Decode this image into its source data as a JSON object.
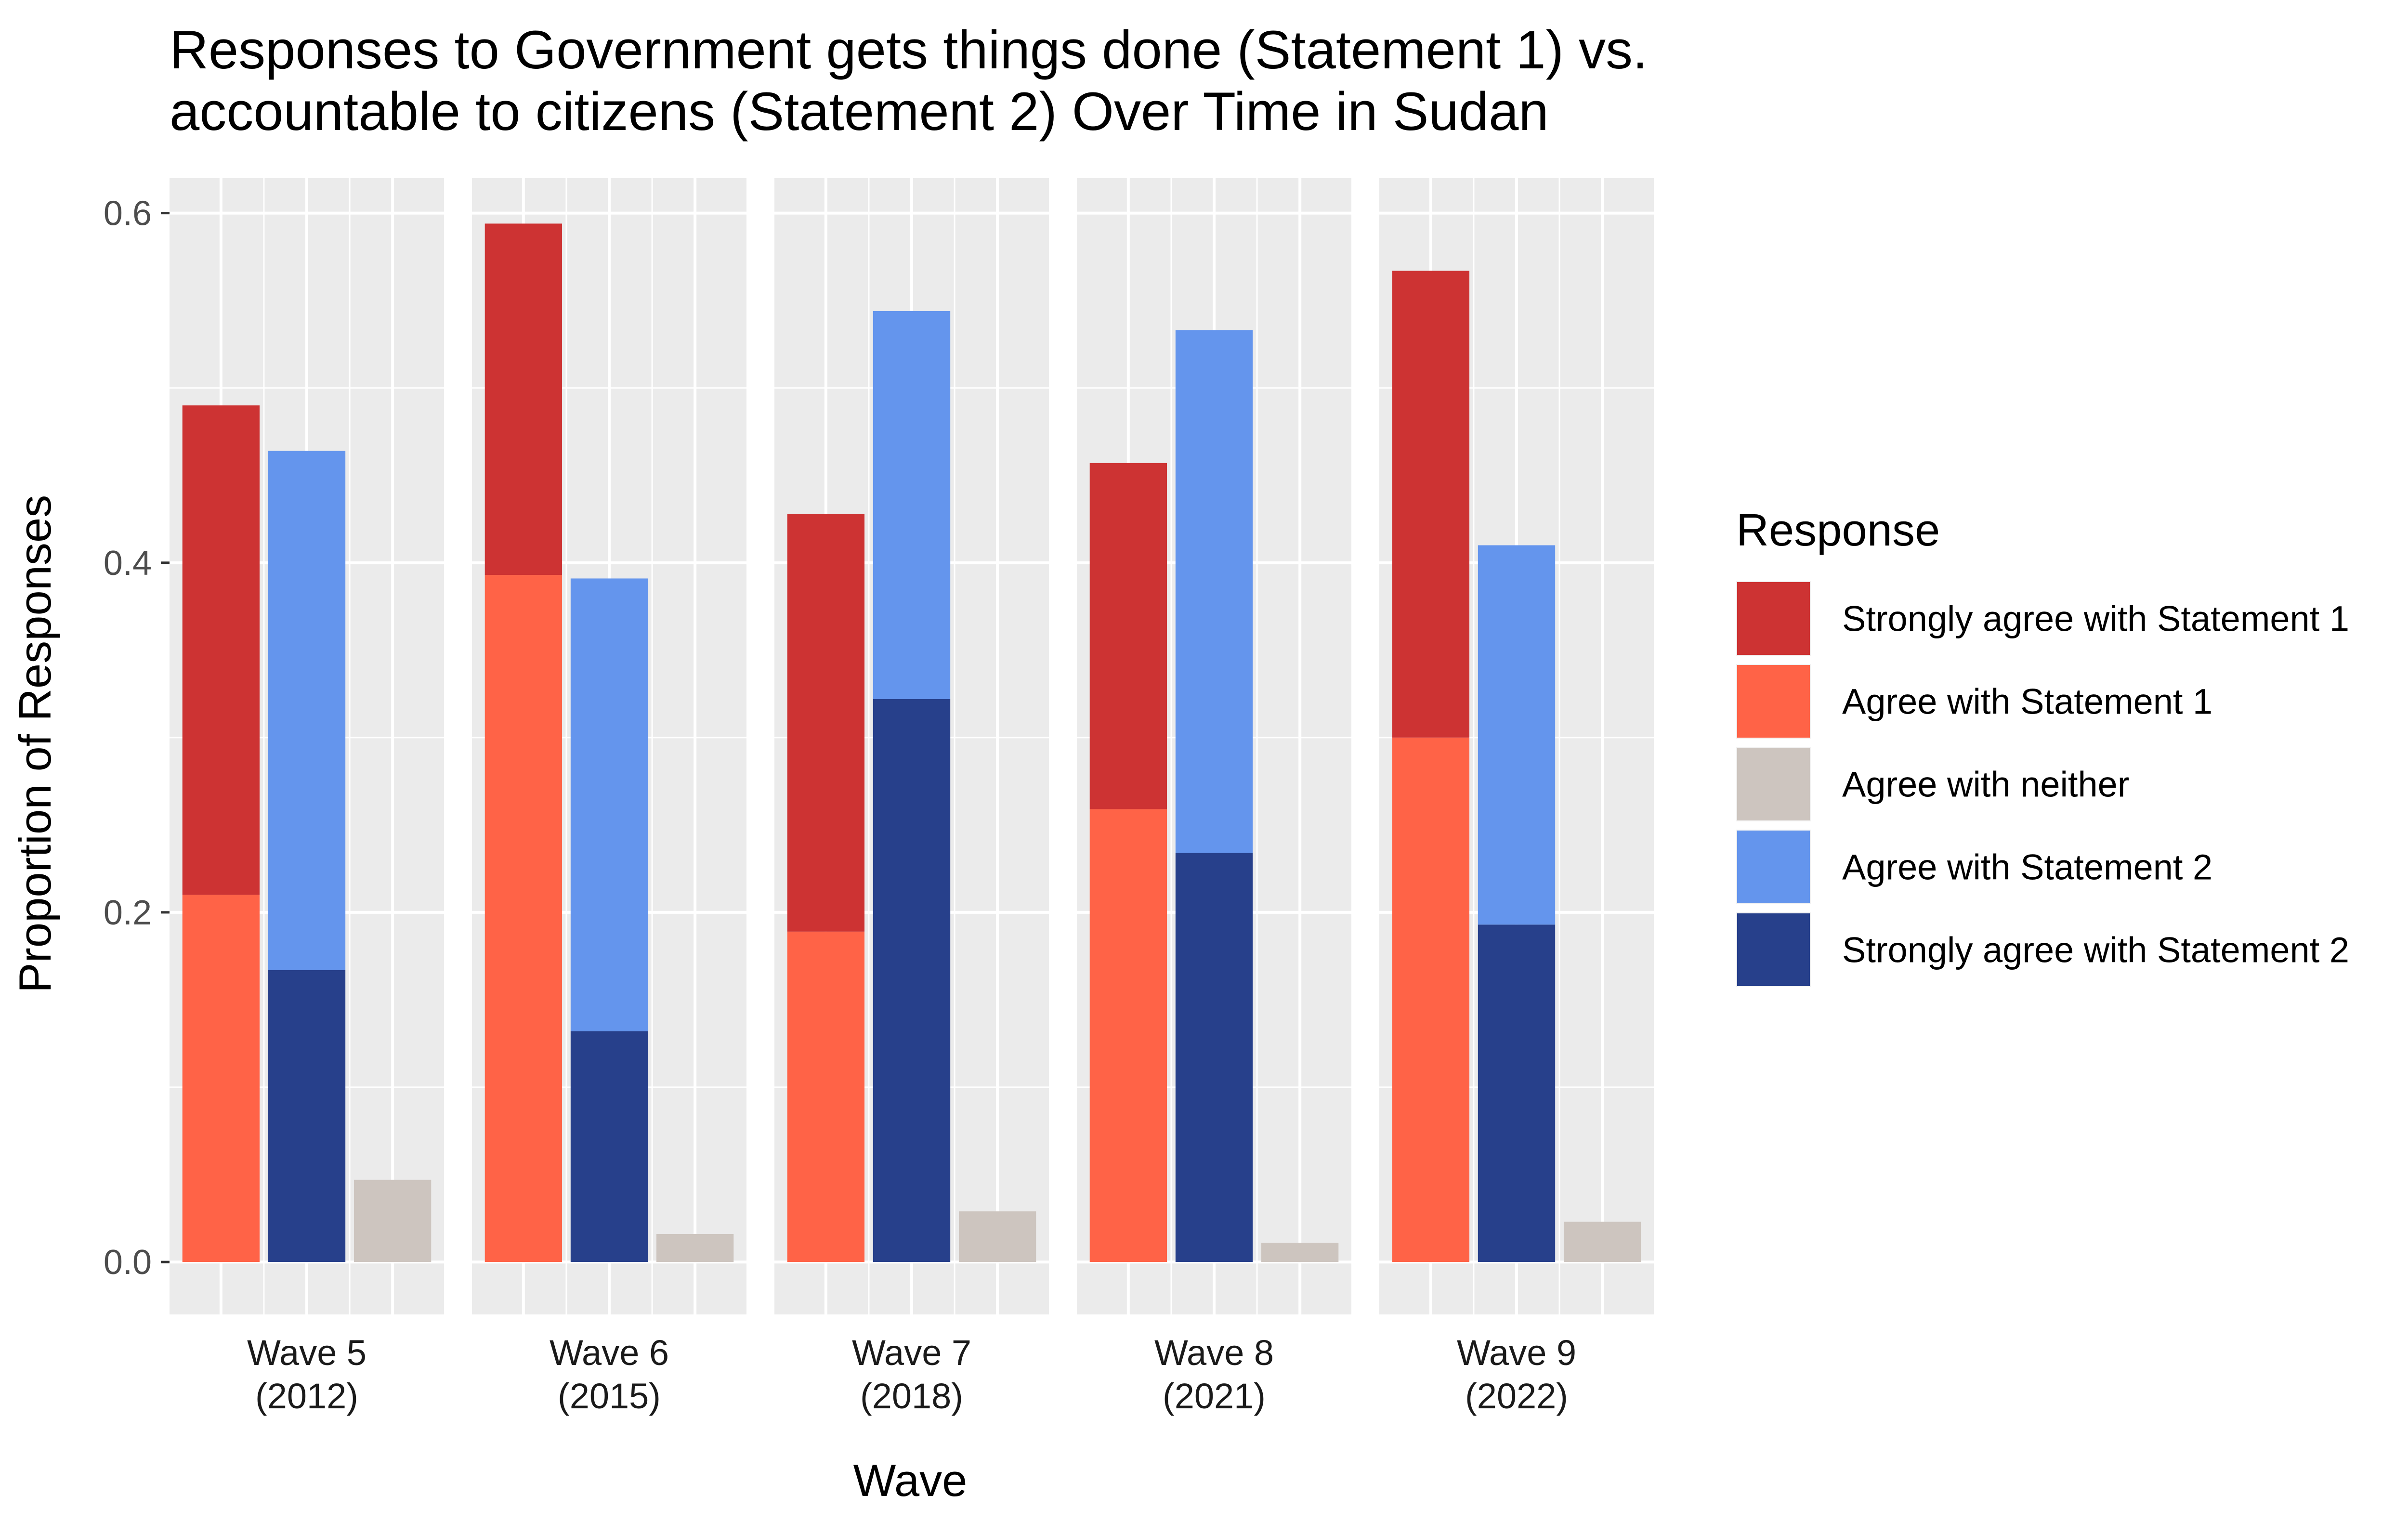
{
  "chart_data": {
    "type": "bar",
    "title": "Responses to Government gets things done (Statement 1) vs. accountable to citizens (Statement 2) Over Time in Sudan",
    "title_lines": [
      "Responses to Government gets things done (Statement 1) vs.",
      "accountable to citizens (Statement 2) Over Time in Sudan"
    ],
    "xlabel": "Wave",
    "ylabel": "Proportion of Responses",
    "ylim": [
      -0.03,
      0.62
    ],
    "yticks": [
      0.0,
      0.2,
      0.4,
      0.6
    ],
    "ytick_labels": [
      "0.0",
      "0.2",
      "0.4",
      "0.6"
    ],
    "grid": true,
    "legend": {
      "title": "Response",
      "position": "right",
      "entries": [
        {
          "label": "Strongly agree with Statement 1",
          "color": "#CD3333"
        },
        {
          "label": "Agree with Statement 1",
          "color": "#FF6347"
        },
        {
          "label": "Agree with neither",
          "color": "#CDC5BF"
        },
        {
          "label": "Agree with Statement 2",
          "color": "#6495ED"
        },
        {
          "label": "Strongly agree with Statement 2",
          "color": "#27408B"
        }
      ]
    },
    "facets": [
      {
        "label_line1": "Wave 5",
        "label_line2": "(2012)",
        "agree_statement_1": 0.21,
        "strongly_agree_statement_1": 0.28,
        "agree_statement_2": 0.297,
        "strongly_agree_statement_2": 0.167,
        "agree_with_neither": 0.047
      },
      {
        "label_line1": "Wave 6",
        "label_line2": "(2015)",
        "agree_statement_1": 0.393,
        "strongly_agree_statement_1": 0.201,
        "agree_statement_2": 0.259,
        "strongly_agree_statement_2": 0.132,
        "agree_with_neither": 0.016
      },
      {
        "label_line1": "Wave 7",
        "label_line2": "(2018)",
        "agree_statement_1": 0.189,
        "strongly_agree_statement_1": 0.239,
        "agree_statement_2": 0.222,
        "strongly_agree_statement_2": 0.322,
        "agree_with_neither": 0.029
      },
      {
        "label_line1": "Wave 8",
        "label_line2": "(2021)",
        "agree_statement_1": 0.259,
        "strongly_agree_statement_1": 0.198,
        "agree_statement_2": 0.299,
        "strongly_agree_statement_2": 0.234,
        "agree_with_neither": 0.011
      },
      {
        "label_line1": "Wave 9",
        "label_line2": "(2022)",
        "agree_statement_1": 0.3,
        "strongly_agree_statement_1": 0.267,
        "agree_statement_2": 0.217,
        "strongly_agree_statement_2": 0.193,
        "agree_with_neither": 0.023
      }
    ]
  }
}
